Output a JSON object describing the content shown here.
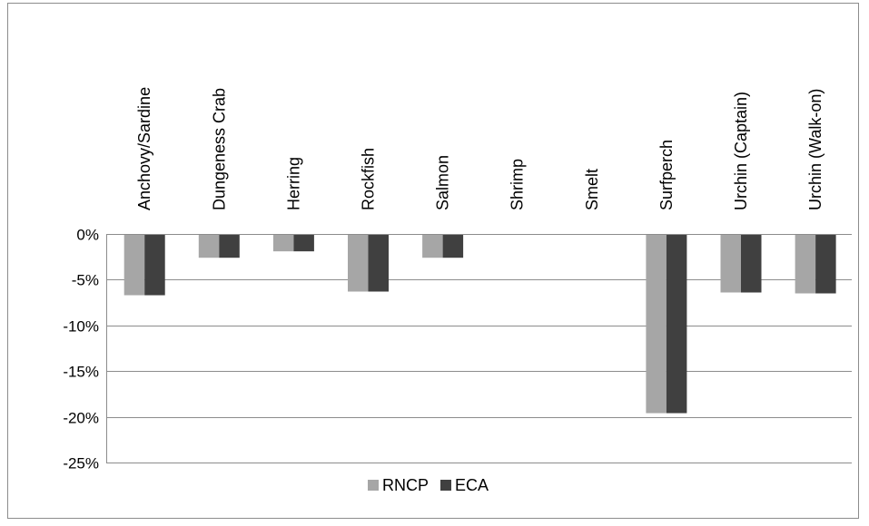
{
  "chart_data": {
    "type": "bar",
    "categories": [
      "Anchovy/Sardine",
      "Dungeness Crab",
      "Herring",
      "Rockfish",
      "Salmon",
      "Shrimp",
      "Smelt",
      "Surfperch",
      "Urchin (Captain)",
      "Urchin (Walk-on)"
    ],
    "series": [
      {
        "name": "RNCP",
        "color": "#a6a6a6",
        "values": [
          -6.7,
          -2.6,
          -1.9,
          -6.3,
          -2.6,
          0,
          0,
          -19.6,
          -6.4,
          -6.5
        ]
      },
      {
        "name": "ECA",
        "color": "#404040",
        "values": [
          -6.7,
          -2.6,
          -1.9,
          -6.3,
          -2.6,
          0,
          0,
          -19.6,
          -6.4,
          -6.5
        ]
      }
    ],
    "ylim": [
      -25,
      0
    ],
    "yticks": [
      0,
      -5,
      -10,
      -15,
      -20,
      -25
    ],
    "ytick_labels": [
      "0%",
      "-5%",
      "-10%",
      "-15%",
      "-20%",
      "-25%"
    ],
    "y_unit": "%",
    "grid": true,
    "legend_position": "bottom"
  }
}
